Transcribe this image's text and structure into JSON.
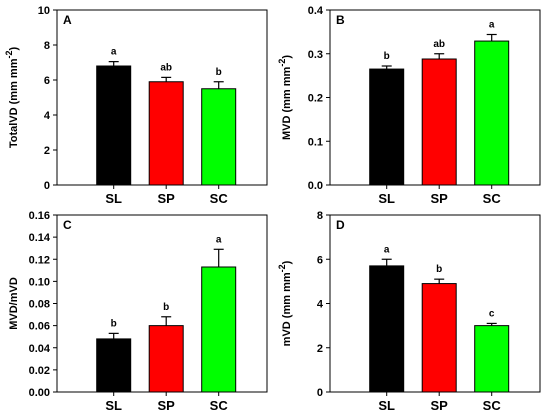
{
  "chart_data": [
    {
      "type": "bar",
      "panel": "A",
      "categories": [
        "SL",
        "SP",
        "SC"
      ],
      "values": [
        6.8,
        5.9,
        5.5
      ],
      "errors": [
        0.25,
        0.25,
        0.4
      ],
      "significance": [
        "a",
        "ab",
        "b"
      ],
      "colors": [
        "#000000",
        "#ff0000",
        "#00ff00"
      ],
      "ylabel_main": "TotalVD (mm mm",
      "ylabel_sup": "-2",
      "ylabel_end": ")",
      "ylim": [
        0,
        10
      ],
      "yticks": [
        "0",
        "2",
        "4",
        "6",
        "8",
        "10"
      ]
    },
    {
      "type": "bar",
      "panel": "B",
      "categories": [
        "SL",
        "SP",
        "SC"
      ],
      "values": [
        0.265,
        0.288,
        0.329
      ],
      "errors": [
        0.007,
        0.012,
        0.015
      ],
      "significance": [
        "b",
        "ab",
        "a"
      ],
      "colors": [
        "#000000",
        "#ff0000",
        "#00ff00"
      ],
      "ylabel_main": "MVD (mm mm",
      "ylabel_sup": "-2",
      "ylabel_end": ")",
      "ylim": [
        0,
        0.4
      ],
      "yticks": [
        "0.0",
        "0.1",
        "0.2",
        "0.3",
        "0.4"
      ]
    },
    {
      "type": "bar",
      "panel": "C",
      "categories": [
        "SL",
        "SP",
        "SC"
      ],
      "values": [
        0.048,
        0.06,
        0.113
      ],
      "errors": [
        0.005,
        0.008,
        0.016
      ],
      "significance": [
        "b",
        "b",
        "a"
      ],
      "colors": [
        "#000000",
        "#ff0000",
        "#00ff00"
      ],
      "ylabel_main": "MVD/mVD",
      "ylabel_sup": "",
      "ylabel_end": "",
      "ylim": [
        0,
        0.16
      ],
      "yticks": [
        "0.00",
        "0.02",
        "0.04",
        "0.06",
        "0.08",
        "0.10",
        "0.12",
        "0.14",
        "0.16"
      ]
    },
    {
      "type": "bar",
      "panel": "D",
      "categories": [
        "SL",
        "SP",
        "SC"
      ],
      "values": [
        5.7,
        4.9,
        3.0
      ],
      "errors": [
        0.3,
        0.2,
        0.1
      ],
      "significance": [
        "a",
        "b",
        "c"
      ],
      "colors": [
        "#000000",
        "#ff0000",
        "#00ff00"
      ],
      "ylabel_main": "mVD (mm mm",
      "ylabel_sup": "-2",
      "ylabel_end": ")",
      "ylim": [
        0,
        8
      ],
      "yticks": [
        "0",
        "2",
        "4",
        "6",
        "8"
      ]
    }
  ]
}
